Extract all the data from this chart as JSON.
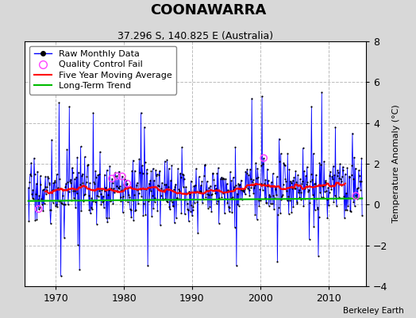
{
  "title": "COONAWARRA",
  "subtitle": "37.296 S, 140.825 E (Australia)",
  "ylabel": "Temperature Anomaly (°C)",
  "attribution": "Berkeley Earth",
  "start_year": 1966,
  "end_year": 2014,
  "ylim": [
    -4,
    8
  ],
  "yticks": [
    -4,
    -2,
    0,
    2,
    4,
    6,
    8
  ],
  "raw_color": "#0000ff",
  "ma_color": "#ff0000",
  "trend_color": "#00bb00",
  "qc_color": "#ff44ff",
  "bg_color": "#d8d8d8",
  "plot_bg_color": "#ffffff",
  "title_fontsize": 13,
  "subtitle_fontsize": 9,
  "legend_fontsize": 8
}
